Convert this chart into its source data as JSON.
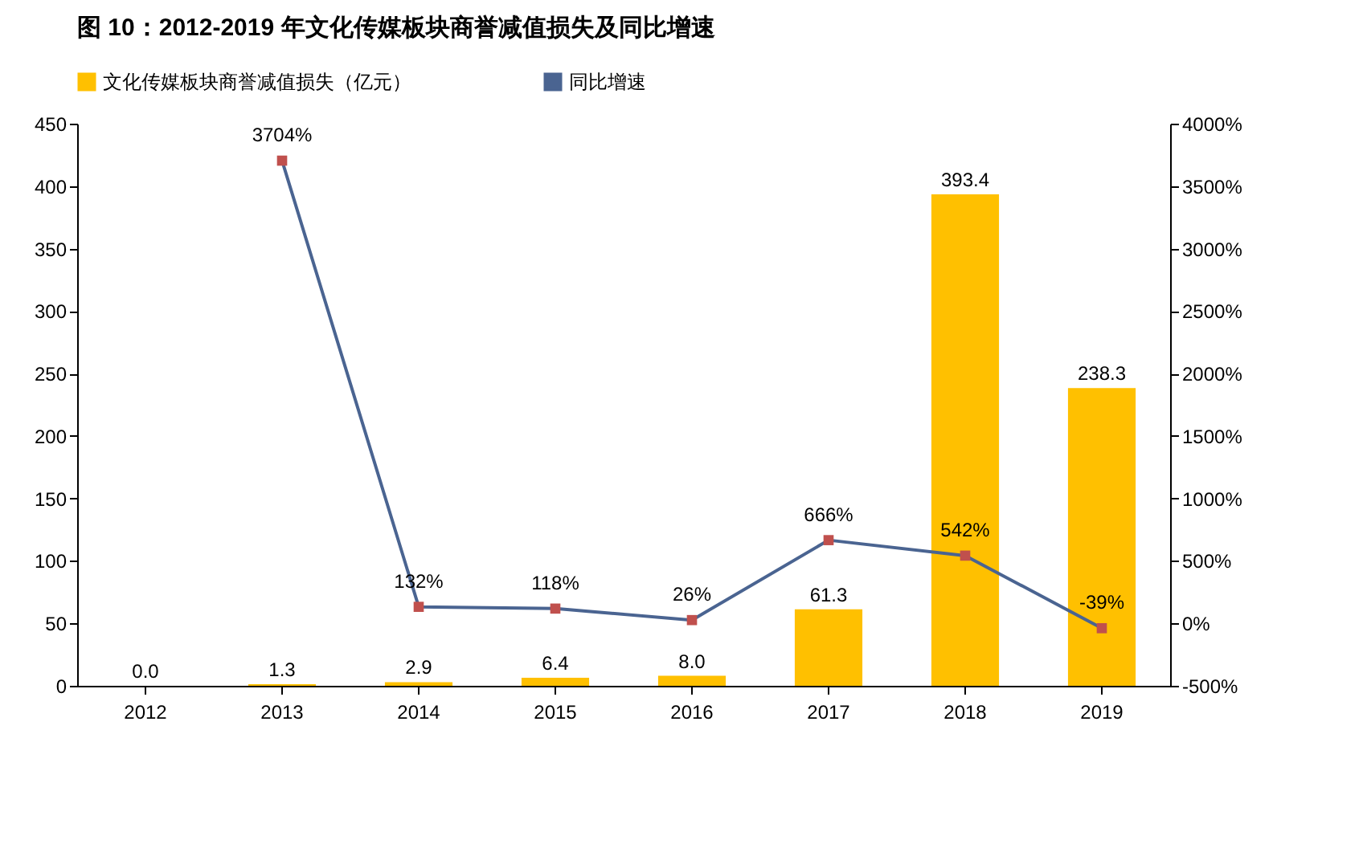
{
  "chart_data": {
    "type": "bar",
    "title": "图 10：2012-2019 年文化传媒板块商誉减值损失及同比增速",
    "categories": [
      "2012",
      "2013",
      "2014",
      "2015",
      "2016",
      "2017",
      "2018",
      "2019"
    ],
    "series": [
      {
        "name": "文化传媒板块商誉减值损失（亿元）",
        "color": "#ffc000",
        "values": [
          0.0,
          1.3,
          2.9,
          6.4,
          8.0,
          61.3,
          393.4,
          238.3
        ],
        "value_labels": [
          "0.0",
          "1.3",
          "2.9",
          "6.4",
          "8.0",
          "61.3",
          "393.4",
          "238.3"
        ]
      },
      {
        "name": "同比增速",
        "type": "line",
        "axis": "y2",
        "color": "#4a6491",
        "marker": "square",
        "values": [
          null,
          3704,
          132,
          118,
          26,
          666,
          542,
          -39
        ],
        "value_labels": [
          null,
          "3704%",
          "132%",
          "118%",
          "26%",
          "666%",
          "542%",
          "-39%"
        ]
      }
    ],
    "ylim": [
      0,
      450
    ],
    "yticks": [
      0,
      50,
      100,
      150,
      200,
      250,
      300,
      350,
      400,
      450
    ],
    "y2lim": [
      -500,
      4000
    ],
    "y2ticks": [
      {
        "value": -500,
        "label": "-500%"
      },
      {
        "value": 0,
        "label": "0%"
      },
      {
        "value": 500,
        "label": "500%"
      },
      {
        "value": 1000,
        "label": "1000%"
      },
      {
        "value": 1500,
        "label": "1500%"
      },
      {
        "value": 2000,
        "label": "2000%"
      },
      {
        "value": 2500,
        "label": "2500%"
      },
      {
        "value": 3000,
        "label": "3000%"
      },
      {
        "value": 3500,
        "label": "3500%"
      },
      {
        "value": 4000,
        "label": "4000%"
      }
    ],
    "legend": "top",
    "grid": false
  }
}
